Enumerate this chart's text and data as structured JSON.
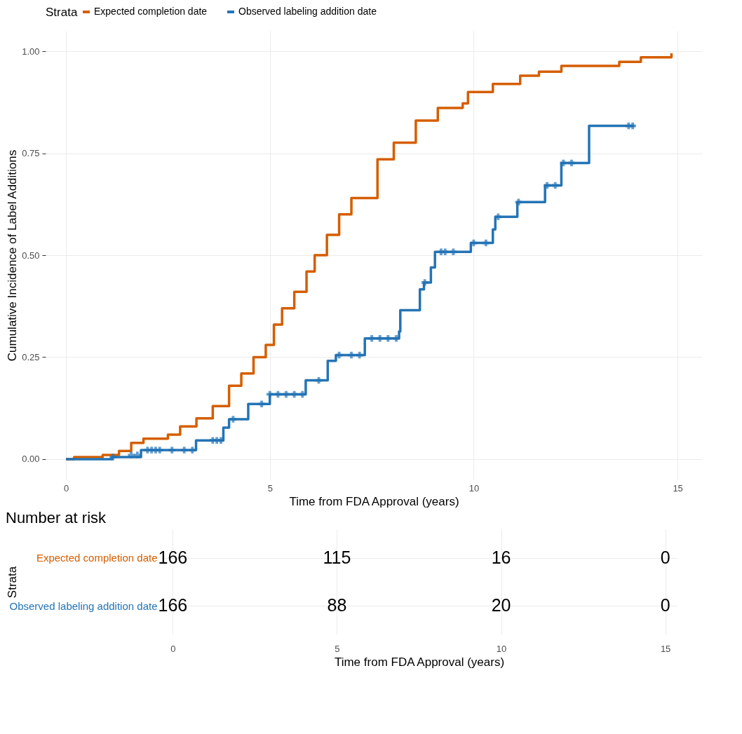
{
  "chart_data": [
    {
      "type": "step",
      "xlabel": "Time from FDA Approval (years)",
      "ylabel": "Cumulative Incidence of Label Additions",
      "legend_title": "Strata",
      "legend": "top",
      "grid": true,
      "xlim": [
        -0.5,
        15.6
      ],
      "xticks": [
        0,
        5,
        10,
        15
      ],
      "ylim": [
        -0.05,
        1.05
      ],
      "yticks": [
        {
          "value": 0,
          "label": "0.00"
        },
        {
          "value": 0.25,
          "label": "0.25"
        },
        {
          "value": 0.5,
          "label": "0.50"
        },
        {
          "value": 0.75,
          "label": "0.75"
        },
        {
          "value": 1,
          "label": "1.00"
        }
      ],
      "series": [
        {
          "name": "Expected completion date",
          "color": "#d55e00",
          "type": "step",
          "x": [
            0,
            0.2,
            0.9,
            1.3,
            1.6,
            1.9,
            2.5,
            2.8,
            3.2,
            3.6,
            4.0,
            4.3,
            4.6,
            4.9,
            5.1,
            5.3,
            5.6,
            5.9,
            6.1,
            6.4,
            6.7,
            7.0,
            7.23,
            7.64,
            8.04,
            8.58,
            9.12,
            9.73,
            9.86,
            10.47,
            11.14,
            11.6,
            12.15,
            13.57,
            14.1,
            14.85
          ],
          "values": [
            0,
            0.005,
            0.01,
            0.02,
            0.04,
            0.05,
            0.06,
            0.08,
            0.1,
            0.13,
            0.18,
            0.21,
            0.25,
            0.28,
            0.33,
            0.37,
            0.41,
            0.46,
            0.5,
            0.55,
            0.6,
            0.64,
            0.64,
            0.735,
            0.776,
            0.83,
            0.861,
            0.872,
            0.9,
            0.92,
            0.94,
            0.95,
            0.964,
            0.974,
            0.985,
            0.995
          ]
        },
        {
          "name": "Observed labeling addition date",
          "color": "#2474b5",
          "type": "step",
          "x": [
            0,
            1.13,
            1.84,
            3.19,
            3.86,
            4.0,
            4.47,
            5.0,
            5.88,
            6.42,
            6.62,
            7.33,
            8.17,
            8.2,
            8.68,
            8.78,
            8.95,
            9.05,
            9.93,
            10.47,
            10.53,
            11.07,
            11.75,
            12.15,
            12.83,
            13.94
          ],
          "values": [
            0,
            0.005,
            0.022,
            0.046,
            0.077,
            0.098,
            0.135,
            0.159,
            0.193,
            0.241,
            0.255,
            0.296,
            0.313,
            0.365,
            0.416,
            0.433,
            0.47,
            0.508,
            0.53,
            0.563,
            0.594,
            0.63,
            0.671,
            0.726,
            0.817,
            0.817
          ]
        },
        {
          "color": "#2474b5",
          "type": "scatter",
          "marker": "cross",
          "x": [
            1.15,
            1.6,
            1.75,
            2.0,
            2.1,
            2.2,
            2.3,
            2.6,
            2.9,
            3.1,
            3.6,
            3.7,
            3.8,
            4.1,
            4.8,
            5.0,
            5.2,
            5.4,
            5.6,
            5.8,
            6.2,
            6.7,
            7.0,
            7.2,
            7.5,
            7.7,
            7.9,
            8.1,
            8.8,
            9.2,
            9.3,
            9.5,
            10.0,
            10.3,
            10.6,
            11.1,
            11.8,
            12.0,
            12.2,
            12.4,
            13.8,
            13.9
          ],
          "values": [
            0.005,
            0.01,
            0.01,
            0.022,
            0.022,
            0.022,
            0.022,
            0.022,
            0.022,
            0.022,
            0.046,
            0.046,
            0.046,
            0.098,
            0.135,
            0.159,
            0.159,
            0.159,
            0.159,
            0.159,
            0.193,
            0.255,
            0.255,
            0.255,
            0.296,
            0.296,
            0.296,
            0.296,
            0.433,
            0.508,
            0.508,
            0.508,
            0.53,
            0.53,
            0.594,
            0.63,
            0.671,
            0.671,
            0.726,
            0.726,
            0.817,
            0.817
          ]
        }
      ]
    },
    {
      "type": "heatmap",
      "title": "Number at risk",
      "xlabel": "Time from FDA Approval (years)",
      "ylabel": "Strata",
      "grid": true,
      "data_labels": true,
      "categories": [
        "0",
        "5",
        "10",
        "15"
      ],
      "y_categories": [
        "Expected completion date",
        "Observed labeling addition date"
      ],
      "cells": [
        [
          166,
          115,
          16,
          0
        ],
        [
          166,
          88,
          20,
          0
        ]
      ]
    }
  ]
}
